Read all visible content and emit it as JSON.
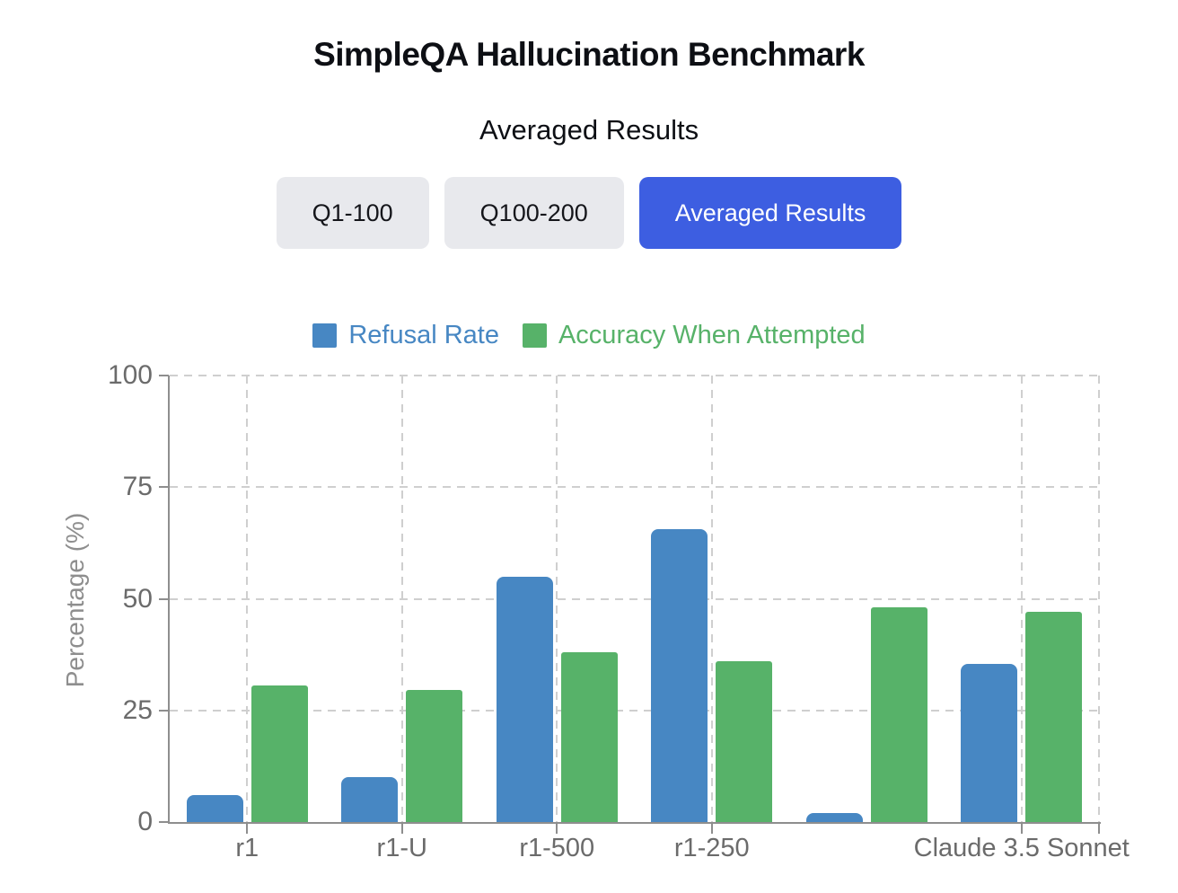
{
  "header": {
    "title": "SimpleQA Hallucination Benchmark",
    "subtitle": "Averaged Results"
  },
  "tabs": [
    {
      "label": "Q1-100",
      "active": false
    },
    {
      "label": "Q100-200",
      "active": false
    },
    {
      "label": "Averaged Results",
      "active": true
    }
  ],
  "colors": {
    "accent_button": "#3d5ee1",
    "inactive_button_bg": "#e8e9ed",
    "refusal_blue": "#4787c3",
    "accuracy_green": "#57b269",
    "axis_line": "#8e8e8e",
    "gridline": "#cfcfcf",
    "tick_text": "#6b6b6b"
  },
  "chart_data": {
    "type": "bar",
    "title": "SimpleQA Hallucination Benchmark",
    "subtitle": "Averaged Results",
    "categories": [
      "r1",
      "r1-U",
      "r1-500",
      "r1-250",
      "",
      "Claude 3.5 Sonnet"
    ],
    "series": [
      {
        "name": "Refusal Rate",
        "color": "#4787c3",
        "values": [
          6,
          10,
          55,
          65.5,
          2,
          35.5
        ]
      },
      {
        "name": "Accuracy When Attempted",
        "color": "#57b269",
        "values": [
          30.5,
          29.5,
          38,
          36,
          48,
          47
        ]
      }
    ],
    "xlabel": "",
    "ylabel": "Percentage (%)",
    "ylim": [
      0,
      100
    ],
    "yticks": [
      0,
      25,
      50,
      75,
      100
    ],
    "grid": "dashed",
    "legend_position": "top"
  }
}
